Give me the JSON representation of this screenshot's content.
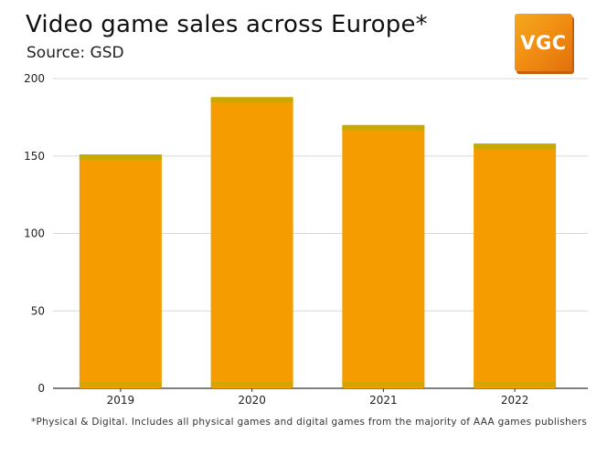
{
  "header": {
    "title": "Video game sales across Europe*",
    "source": "Source: GSD"
  },
  "logo": {
    "text": "VGC"
  },
  "footnote": "*Physical & Digital. Includes all physical games and digital games from the majority of AAA games publishers",
  "colors": {
    "bar": "#f59c00",
    "bar_cap": "#c9a800",
    "grid": "#d8d8d8",
    "axis": "#333333",
    "brand": "#f08a12"
  },
  "chart_data": {
    "type": "bar",
    "categories": [
      "2019",
      "2020",
      "2021",
      "2022"
    ],
    "values": [
      151,
      188,
      170,
      158
    ],
    "ylim": [
      0,
      200
    ],
    "yticks": [
      0,
      50,
      100,
      150,
      200
    ],
    "title": "",
    "xlabel": "",
    "ylabel": "",
    "grid": true
  }
}
